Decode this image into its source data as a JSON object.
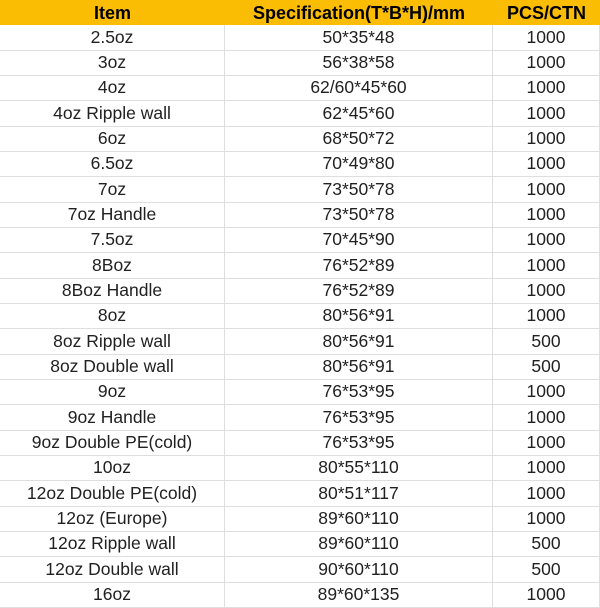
{
  "colors": {
    "header_bg": "#FBBC04",
    "header_text": "#000000",
    "body_text": "#212121",
    "border": "#DEDEDE",
    "row_bg": "#FFFFFF"
  },
  "table": {
    "columns": [
      {
        "label": "Item"
      },
      {
        "label": "Specification(T*B*H)/mm"
      },
      {
        "label": "PCS/CTN"
      }
    ],
    "rows": [
      {
        "item": "2.5oz",
        "spec": "50*35*48",
        "pcs": "1000"
      },
      {
        "item": "3oz",
        "spec": "56*38*58",
        "pcs": "1000"
      },
      {
        "item": "4oz",
        "spec": "62/60*45*60",
        "pcs": "1000"
      },
      {
        "item": "4oz Ripple wall",
        "spec": "62*45*60",
        "pcs": "1000"
      },
      {
        "item": "6oz",
        "spec": "68*50*72",
        "pcs": "1000"
      },
      {
        "item": "6.5oz",
        "spec": "70*49*80",
        "pcs": "1000"
      },
      {
        "item": "7oz",
        "spec": "73*50*78",
        "pcs": "1000"
      },
      {
        "item": "7oz Handle",
        "spec": "73*50*78",
        "pcs": "1000"
      },
      {
        "item": "7.5oz",
        "spec": "70*45*90",
        "pcs": "1000"
      },
      {
        "item": "8Boz",
        "spec": "76*52*89",
        "pcs": "1000"
      },
      {
        "item": "8Boz Handle",
        "spec": "76*52*89",
        "pcs": "1000"
      },
      {
        "item": "8oz",
        "spec": "80*56*91",
        "pcs": "1000"
      },
      {
        "item": "8oz Ripple wall",
        "spec": "80*56*91",
        "pcs": "500"
      },
      {
        "item": "8oz Double wall",
        "spec": "80*56*91",
        "pcs": "500"
      },
      {
        "item": "9oz",
        "spec": "76*53*95",
        "pcs": "1000"
      },
      {
        "item": "9oz Handle",
        "spec": "76*53*95",
        "pcs": "1000"
      },
      {
        "item": "9oz Double PE(cold)",
        "spec": "76*53*95",
        "pcs": "1000"
      },
      {
        "item": "10oz",
        "spec": "80*55*110",
        "pcs": "1000"
      },
      {
        "item": "12oz Double PE(cold)",
        "spec": "80*51*117",
        "pcs": "1000"
      },
      {
        "item": "12oz (Europe)",
        "spec": "89*60*110",
        "pcs": "1000"
      },
      {
        "item": "12oz Ripple wall",
        "spec": "89*60*110",
        "pcs": "500"
      },
      {
        "item": "12oz Double wall",
        "spec": "90*60*110",
        "pcs": "500"
      },
      {
        "item": "16oz",
        "spec": "89*60*135",
        "pcs": "1000"
      }
    ]
  }
}
